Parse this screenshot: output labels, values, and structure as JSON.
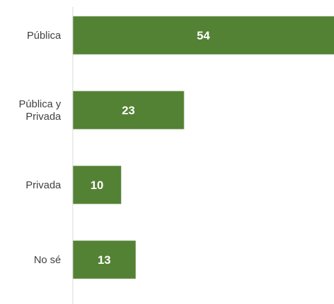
{
  "chart_data": {
    "type": "bar",
    "orientation": "horizontal",
    "categories": [
      [
        "Pública"
      ],
      [
        "Pública y",
        "Privada"
      ],
      [
        "Privada"
      ],
      [
        "No sé"
      ]
    ],
    "values": [
      54,
      23,
      10,
      13
    ],
    "data_labels": [
      "54",
      "23",
      "10",
      "13"
    ],
    "title": "",
    "xlabel": "",
    "ylabel": "",
    "xlim": [
      0,
      54
    ],
    "grid": false,
    "legend": "none",
    "bar_color": "#548235",
    "axis_color": "#d9d9d9"
  }
}
